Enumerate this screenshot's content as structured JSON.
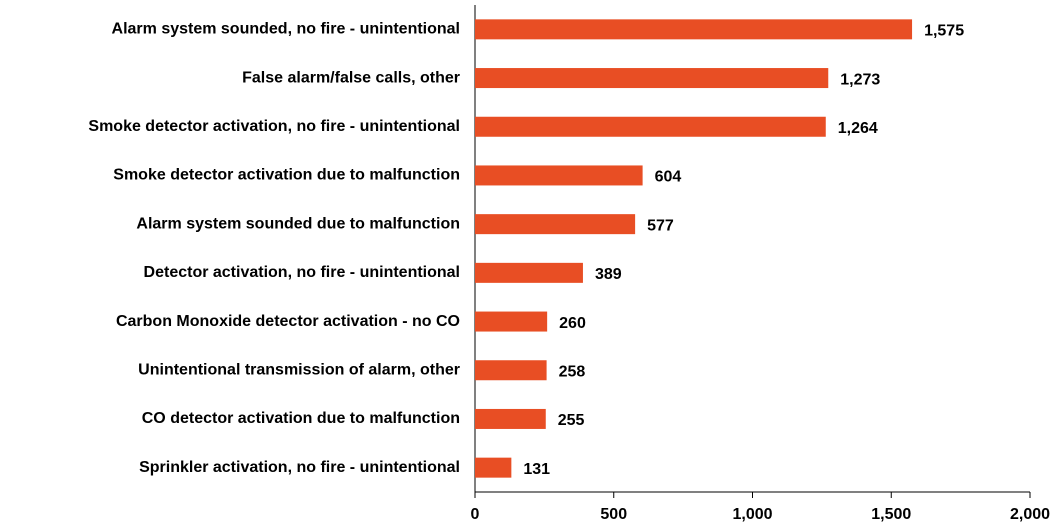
{
  "chart_data": {
    "type": "hbar",
    "categories": [
      "Alarm system sounded, no fire - unintentional",
      "False alarm/false calls, other",
      "Smoke detector activation, no fire - unintentional",
      "Smoke detector activation due to malfunction",
      "Alarm system sounded due to malfunction",
      "Detector activation, no fire - unintentional",
      "Carbon Monoxide detector activation - no CO",
      "Unintentional transmission of alarm, other",
      "CO detector activation due to malfunction",
      "Sprinkler activation, no fire - unintentional"
    ],
    "values": [
      1575,
      1273,
      1264,
      604,
      577,
      389,
      260,
      258,
      255,
      131
    ],
    "value_labels": [
      "1,575",
      "1,273",
      "1,264",
      "604",
      "577",
      "389",
      "260",
      "258",
      "255",
      "131"
    ],
    "color": "#e84e24",
    "xlim": [
      0,
      2000
    ],
    "xticks": [
      0,
      500,
      {
        "value": 1000,
        "label": "1,000"
      },
      {
        "value": 1500,
        "label": "1,500"
      },
      {
        "value": 2000,
        "label": "2,000"
      }
    ]
  }
}
